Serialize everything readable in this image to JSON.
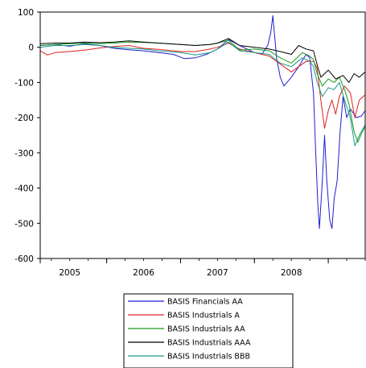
{
  "chart_data": {
    "type": "line",
    "title": "",
    "xlabel": "",
    "ylabel": "",
    "xlim": [
      2004.6,
      2009.0
    ],
    "ylim": [
      -600,
      100
    ],
    "y_ticks": [
      100,
      0,
      -100,
      -200,
      -300,
      -400,
      -500,
      -600
    ],
    "y_tick_labels": [
      "100",
      "0",
      "-100",
      "-200",
      "-300",
      "-400",
      "-500",
      "-600"
    ],
    "x_tick_labels": [
      {
        "label": "2005",
        "x": 2005.0
      },
      {
        "label": "2006",
        "x": 2006.0
      },
      {
        "label": "2007",
        "x": 2007.0
      },
      {
        "label": "2008",
        "x": 2008.0
      }
    ],
    "x_boundaries": [
      2004.6,
      2005.5,
      2006.5,
      2007.5,
      2008.5
    ],
    "grid": false,
    "legend_position": "bottom-center",
    "series": [
      {
        "name": "BASIS Financials AA",
        "color": "#1f1fd0",
        "points": [
          [
            2004.6,
            5
          ],
          [
            2004.8,
            8
          ],
          [
            2005.0,
            3
          ],
          [
            2005.2,
            10
          ],
          [
            2005.4,
            5
          ],
          [
            2005.6,
            -3
          ],
          [
            2005.8,
            -7
          ],
          [
            2006.0,
            -10
          ],
          [
            2006.2,
            -15
          ],
          [
            2006.4,
            -20
          ],
          [
            2006.55,
            -32
          ],
          [
            2006.7,
            -30
          ],
          [
            2006.85,
            -20
          ],
          [
            2007.0,
            -5
          ],
          [
            2007.15,
            22
          ],
          [
            2007.3,
            5
          ],
          [
            2007.4,
            -5
          ],
          [
            2007.5,
            -15
          ],
          [
            2007.6,
            -20
          ],
          [
            2007.68,
            5
          ],
          [
            2007.72,
            40
          ],
          [
            2007.75,
            90
          ],
          [
            2007.77,
            40
          ],
          [
            2007.8,
            -30
          ],
          [
            2007.85,
            -85
          ],
          [
            2007.9,
            -110
          ],
          [
            2008.0,
            -85
          ],
          [
            2008.1,
            -55
          ],
          [
            2008.2,
            -20
          ],
          [
            2008.25,
            -30
          ],
          [
            2008.3,
            -130
          ],
          [
            2008.33,
            -300
          ],
          [
            2008.36,
            -450
          ],
          [
            2008.38,
            -515
          ],
          [
            2008.42,
            -380
          ],
          [
            2008.45,
            -250
          ],
          [
            2008.48,
            -380
          ],
          [
            2008.52,
            -490
          ],
          [
            2008.55,
            -515
          ],
          [
            2008.58,
            -430
          ],
          [
            2008.62,
            -380
          ],
          [
            2008.66,
            -240
          ],
          [
            2008.7,
            -140
          ],
          [
            2008.75,
            -200
          ],
          [
            2008.8,
            -175
          ],
          [
            2008.88,
            -200
          ],
          [
            2008.95,
            -195
          ],
          [
            2009.0,
            -180
          ]
        ]
      },
      {
        "name": "BASIS Industrials A",
        "color": "#e02020",
        "points": [
          [
            2004.6,
            -10
          ],
          [
            2004.7,
            -22
          ],
          [
            2004.8,
            -15
          ],
          [
            2005.0,
            -12
          ],
          [
            2005.2,
            -8
          ],
          [
            2005.4,
            -2
          ],
          [
            2005.6,
            2
          ],
          [
            2005.8,
            5
          ],
          [
            2006.0,
            -3
          ],
          [
            2006.2,
            -6
          ],
          [
            2006.5,
            -12
          ],
          [
            2006.7,
            -12
          ],
          [
            2006.9,
            -5
          ],
          [
            2007.0,
            0
          ],
          [
            2007.15,
            12
          ],
          [
            2007.3,
            -5
          ],
          [
            2007.5,
            -15
          ],
          [
            2007.7,
            -25
          ],
          [
            2007.9,
            -55
          ],
          [
            2008.0,
            -70
          ],
          [
            2008.1,
            -55
          ],
          [
            2008.2,
            -40
          ],
          [
            2008.3,
            -40
          ],
          [
            2008.35,
            -60
          ],
          [
            2008.4,
            -150
          ],
          [
            2008.45,
            -230
          ],
          [
            2008.5,
            -180
          ],
          [
            2008.55,
            -150
          ],
          [
            2008.6,
            -190
          ],
          [
            2008.65,
            -140
          ],
          [
            2008.72,
            -110
          ],
          [
            2008.8,
            -130
          ],
          [
            2008.86,
            -200
          ],
          [
            2008.92,
            -150
          ],
          [
            2009.0,
            -135
          ]
        ]
      },
      {
        "name": "BASIS Industrials AA",
        "color": "#1a9a1a",
        "points": [
          [
            2004.6,
            5
          ],
          [
            2004.8,
            8
          ],
          [
            2005.0,
            10
          ],
          [
            2005.2,
            12
          ],
          [
            2005.4,
            10
          ],
          [
            2005.6,
            12
          ],
          [
            2005.8,
            15
          ],
          [
            2006.0,
            14
          ],
          [
            2006.2,
            12
          ],
          [
            2006.5,
            8
          ],
          [
            2006.7,
            5
          ],
          [
            2006.9,
            8
          ],
          [
            2007.0,
            12
          ],
          [
            2007.15,
            20
          ],
          [
            2007.3,
            -8
          ],
          [
            2007.5,
            -5
          ],
          [
            2007.7,
            -10
          ],
          [
            2007.85,
            -30
          ],
          [
            2008.0,
            -45
          ],
          [
            2008.15,
            -15
          ],
          [
            2008.25,
            -25
          ],
          [
            2008.3,
            -35
          ],
          [
            2008.35,
            -75
          ],
          [
            2008.42,
            -110
          ],
          [
            2008.5,
            -90
          ],
          [
            2008.58,
            -100
          ],
          [
            2008.65,
            -85
          ],
          [
            2008.72,
            -120
          ],
          [
            2008.78,
            -160
          ],
          [
            2008.85,
            -240
          ],
          [
            2008.9,
            -270
          ],
          [
            2008.95,
            -245
          ],
          [
            2009.0,
            -225
          ]
        ]
      },
      {
        "name": "BASIS Industrials AAA",
        "color": "#000000",
        "points": [
          [
            2004.6,
            10
          ],
          [
            2004.8,
            12
          ],
          [
            2005.0,
            12
          ],
          [
            2005.2,
            15
          ],
          [
            2005.4,
            13
          ],
          [
            2005.6,
            15
          ],
          [
            2005.8,
            18
          ],
          [
            2006.0,
            15
          ],
          [
            2006.2,
            12
          ],
          [
            2006.5,
            8
          ],
          [
            2006.7,
            5
          ],
          [
            2006.9,
            8
          ],
          [
            2007.0,
            12
          ],
          [
            2007.15,
            25
          ],
          [
            2007.3,
            5
          ],
          [
            2007.5,
            0
          ],
          [
            2007.7,
            -5
          ],
          [
            2007.85,
            -12
          ],
          [
            2008.0,
            -20
          ],
          [
            2008.1,
            5
          ],
          [
            2008.2,
            -5
          ],
          [
            2008.3,
            -10
          ],
          [
            2008.35,
            -50
          ],
          [
            2008.4,
            -85
          ],
          [
            2008.5,
            -65
          ],
          [
            2008.6,
            -90
          ],
          [
            2008.7,
            -80
          ],
          [
            2008.78,
            -100
          ],
          [
            2008.85,
            -75
          ],
          [
            2008.92,
            -85
          ],
          [
            2009.0,
            -70
          ]
        ]
      },
      {
        "name": "BASIS Industrials BBB",
        "color": "#1a9a8a",
        "points": [
          [
            2004.6,
            0
          ],
          [
            2004.8,
            5
          ],
          [
            2005.0,
            5
          ],
          [
            2005.2,
            8
          ],
          [
            2005.4,
            5
          ],
          [
            2005.6,
            0
          ],
          [
            2005.8,
            -3
          ],
          [
            2006.0,
            -5
          ],
          [
            2006.2,
            -10
          ],
          [
            2006.5,
            -15
          ],
          [
            2006.7,
            -22
          ],
          [
            2006.9,
            -15
          ],
          [
            2007.0,
            -5
          ],
          [
            2007.15,
            15
          ],
          [
            2007.3,
            -10
          ],
          [
            2007.5,
            -15
          ],
          [
            2007.7,
            -20
          ],
          [
            2007.85,
            -45
          ],
          [
            2008.0,
            -55
          ],
          [
            2008.15,
            -30
          ],
          [
            2008.25,
            -40
          ],
          [
            2008.3,
            -55
          ],
          [
            2008.35,
            -100
          ],
          [
            2008.42,
            -140
          ],
          [
            2008.5,
            -115
          ],
          [
            2008.58,
            -120
          ],
          [
            2008.65,
            -100
          ],
          [
            2008.72,
            -150
          ],
          [
            2008.8,
            -200
          ],
          [
            2008.86,
            -280
          ],
          [
            2008.92,
            -250
          ],
          [
            2009.0,
            -220
          ]
        ]
      }
    ]
  }
}
